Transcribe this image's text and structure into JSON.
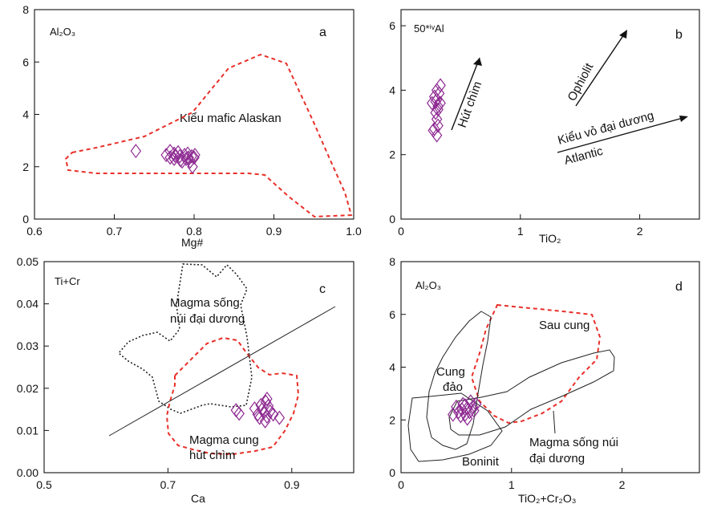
{
  "panels": {
    "a": {
      "letter": "a",
      "corner_label": "Al₂O₃",
      "xlabel": "Mg#",
      "field_label": "Kiểu mafic Alaskan",
      "xticks": [
        "0.6",
        "0.7",
        "0.8",
        "0.9",
        "1.0"
      ],
      "yticks": [
        "0",
        "2",
        "4",
        "6",
        "8"
      ]
    },
    "b": {
      "letter": "b",
      "corner_label": "50*ⁱᵛAl",
      "xlabel": "TiO₂",
      "xticks": [
        "0",
        "1",
        "2"
      ],
      "yticks": [
        "0",
        "2",
        "4",
        "6"
      ],
      "arrow_labels": [
        "Hút chìm",
        "Ophiolit",
        "Kiểu vỏ đại dương",
        "Atlantic"
      ]
    },
    "c": {
      "letter": "c",
      "corner_label": "Ti+Cr",
      "xlabel": "Ca",
      "xticks": [
        "0.5",
        "0.7",
        "0.9"
      ],
      "yticks": [
        "0.00",
        "0.01",
        "0.02",
        "0.03",
        "0.04",
        "0.05"
      ],
      "field_labels": [
        "Magma sống",
        "núi đại dương",
        "Magma cung",
        "hút chìm"
      ]
    },
    "d": {
      "letter": "d",
      "corner_label": "Al₂O₃",
      "xlabel": "TiO₂+Cr₂O₃",
      "xticks": [
        "0",
        "1",
        "2"
      ],
      "yticks": [
        "0",
        "2",
        "4",
        "6",
        "8"
      ],
      "field_labels": [
        "Sau cung",
        "Cung",
        "đảo",
        "Boninit",
        "Magma sống núi",
        "đại dương"
      ]
    }
  },
  "colors": {
    "points": "#8e2a92",
    "red_field": "#e8302a",
    "axes": "#111111"
  },
  "chart_data": [
    {
      "type": "scatter",
      "panel": "a",
      "xlabel": "Mg#",
      "ylabel": "Al₂O₃",
      "xlim": [
        0.6,
        1.0
      ],
      "ylim": [
        0,
        8
      ],
      "points": [
        [
          0.727,
          2.6
        ],
        [
          0.765,
          2.45
        ],
        [
          0.77,
          2.35
        ],
        [
          0.775,
          2.5
        ],
        [
          0.775,
          2.3
        ],
        [
          0.78,
          2.55
        ],
        [
          0.782,
          2.4
        ],
        [
          0.785,
          2.2
        ],
        [
          0.788,
          2.45
        ],
        [
          0.79,
          2.3
        ],
        [
          0.792,
          2.5
        ],
        [
          0.795,
          2.2
        ],
        [
          0.797,
          2.4
        ],
        [
          0.8,
          2.35
        ],
        [
          0.798,
          2.0
        ],
        [
          0.77,
          2.6
        ],
        [
          0.783,
          2.25
        ],
        [
          0.793,
          2.35
        ],
        [
          0.776,
          2.42
        ],
        [
          0.801,
          2.45
        ]
      ],
      "fields": [
        {
          "label": "Kiểu mafic Alaskan",
          "style": "red-dashed"
        }
      ]
    },
    {
      "type": "scatter",
      "panel": "b",
      "xlabel": "TiO₂",
      "ylabel": "50*ⁱᵛAl",
      "xlim": [
        0,
        2.5
      ],
      "ylim": [
        0,
        6.5
      ],
      "points": [
        [
          0.26,
          3.6
        ],
        [
          0.28,
          3.8
        ],
        [
          0.3,
          4.0
        ],
        [
          0.3,
          3.7
        ],
        [
          0.32,
          3.9
        ],
        [
          0.31,
          3.5
        ],
        [
          0.29,
          3.3
        ],
        [
          0.3,
          3.1
        ],
        [
          0.31,
          2.9
        ],
        [
          0.28,
          2.8
        ],
        [
          0.3,
          2.6
        ],
        [
          0.33,
          3.6
        ],
        [
          0.29,
          3.65
        ],
        [
          0.33,
          4.15
        ],
        [
          0.27,
          2.75
        ],
        [
          0.31,
          3.4
        ]
      ],
      "arrows": [
        "Hút chìm",
        "Ophiolit",
        "Kiểu vỏ đại dương",
        "Atlantic"
      ]
    },
    {
      "type": "scatter",
      "panel": "c",
      "xlabel": "Ca",
      "ylabel": "Ti+Cr",
      "xlim": [
        0.5,
        1.0
      ],
      "ylim": [
        0,
        0.05
      ],
      "points": [
        [
          0.81,
          0.0148
        ],
        [
          0.815,
          0.014
        ],
        [
          0.84,
          0.0152
        ],
        [
          0.845,
          0.0138
        ],
        [
          0.85,
          0.016
        ],
        [
          0.852,
          0.015
        ],
        [
          0.855,
          0.0143
        ],
        [
          0.858,
          0.0168
        ],
        [
          0.86,
          0.0133
        ],
        [
          0.862,
          0.0158
        ],
        [
          0.865,
          0.0145
        ],
        [
          0.848,
          0.013
        ],
        [
          0.87,
          0.0138
        ],
        [
          0.88,
          0.013
        ],
        [
          0.857,
          0.0122
        ],
        [
          0.86,
          0.0175
        ]
      ],
      "fields": [
        {
          "label": "Magma sống núi đại dương",
          "style": "black-dotted"
        },
        {
          "label": "Magma cung hút chìm",
          "style": "red-dashed"
        }
      ]
    },
    {
      "type": "scatter",
      "panel": "d",
      "xlabel": "TiO₂+Cr₂O₃",
      "ylabel": "Al₂O₃",
      "xlim": [
        0,
        2.7
      ],
      "ylim": [
        0,
        8
      ],
      "points": [
        [
          0.5,
          2.5
        ],
        [
          0.52,
          2.3
        ],
        [
          0.55,
          2.4
        ],
        [
          0.56,
          2.6
        ],
        [
          0.58,
          2.2
        ],
        [
          0.6,
          2.45
        ],
        [
          0.62,
          2.3
        ],
        [
          0.58,
          2.55
        ],
        [
          0.54,
          2.15
        ],
        [
          0.65,
          2.5
        ],
        [
          0.68,
          2.6
        ],
        [
          0.47,
          2.2
        ],
        [
          0.6,
          2.05
        ],
        [
          0.63,
          2.7
        ],
        [
          0.66,
          2.35
        ]
      ],
      "fields": [
        {
          "label": "Sau cung",
          "style": "red-dashed"
        },
        {
          "label": "Cung đảo",
          "style": "black-solid"
        },
        {
          "label": "Boninit",
          "style": "black-solid"
        },
        {
          "label": "Magma sống núi đại dương",
          "style": "black-solid"
        }
      ]
    }
  ]
}
